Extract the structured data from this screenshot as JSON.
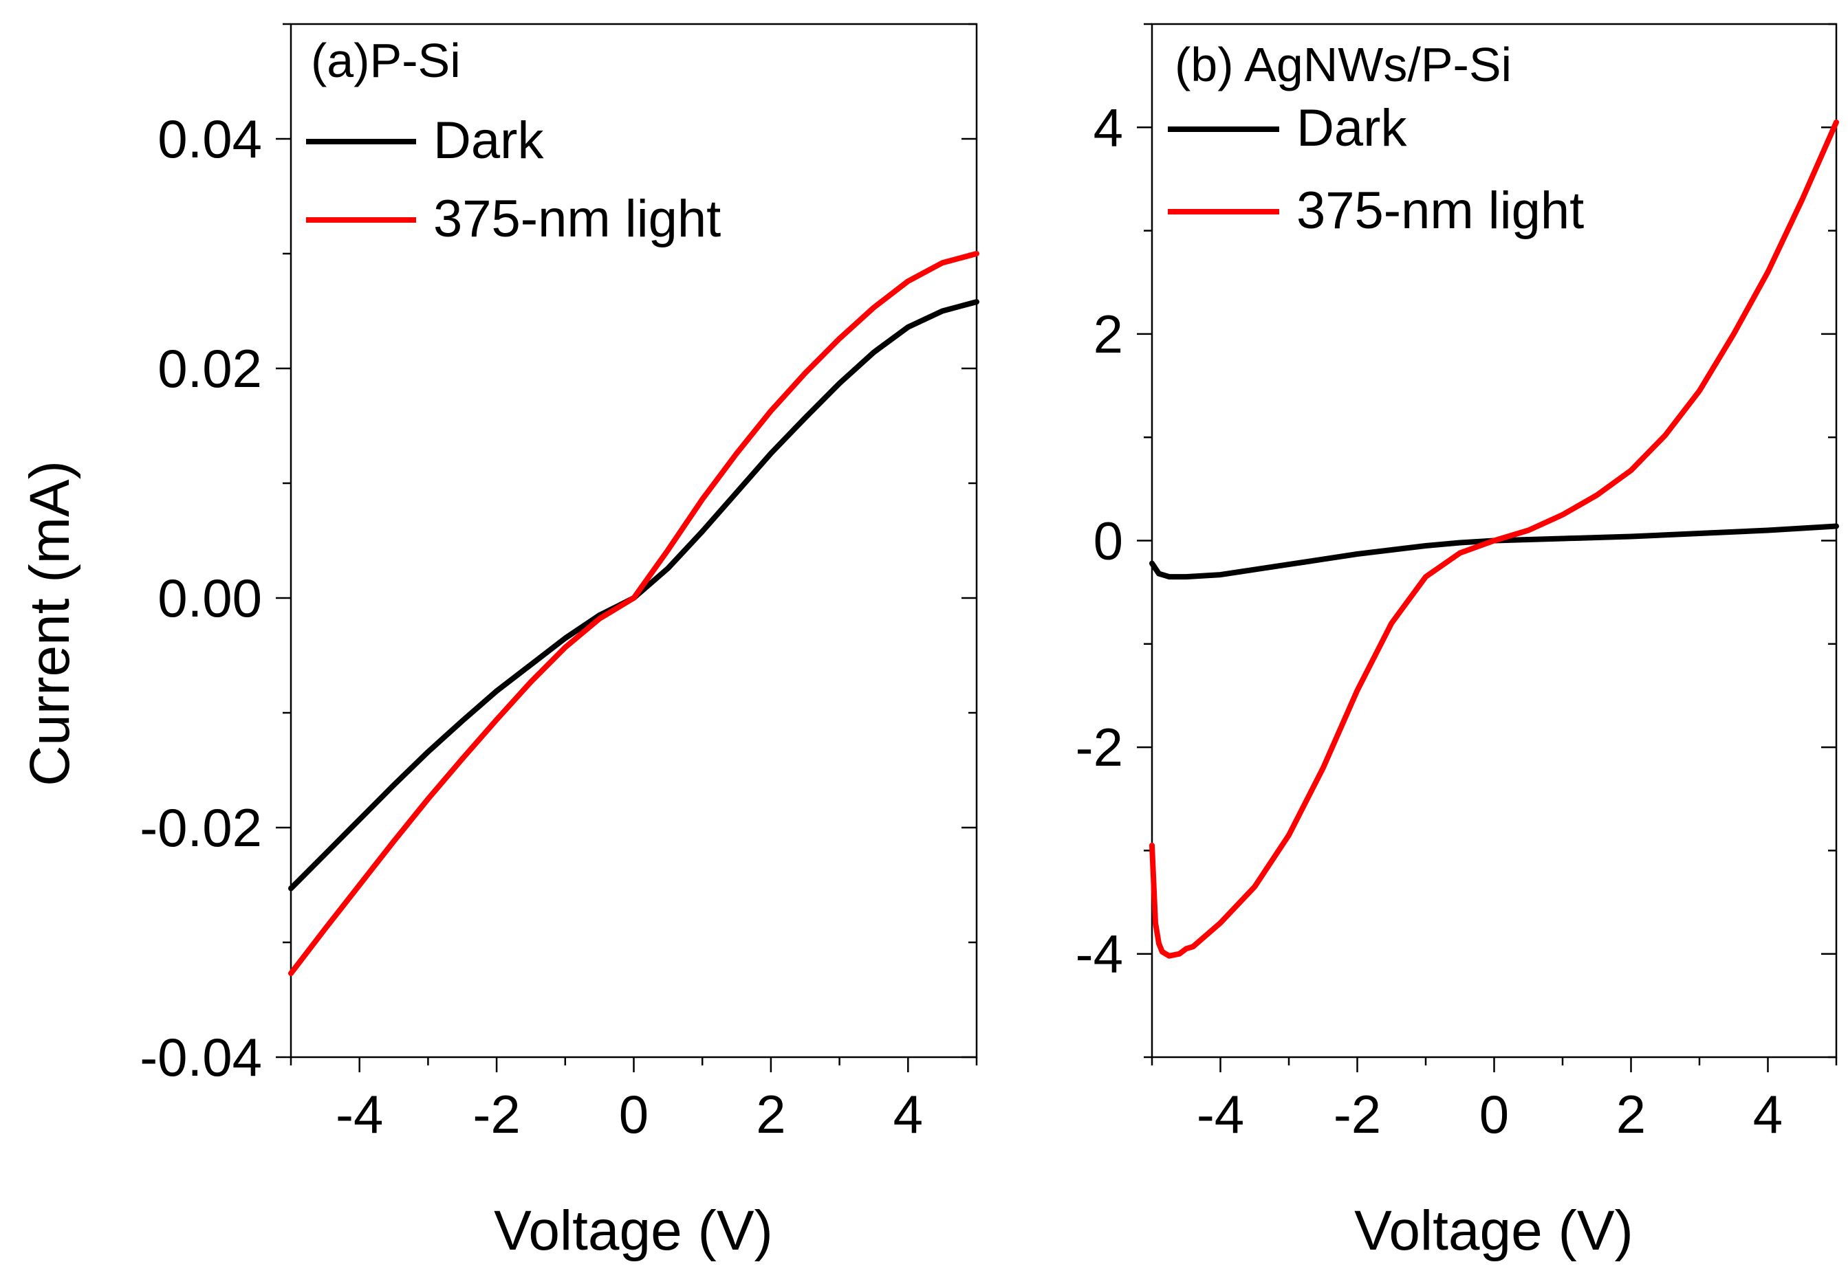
{
  "colors": {
    "dark": "#000000",
    "light": "#ff0000"
  },
  "chart_data": [
    {
      "type": "line",
      "title": "(a)P-Si",
      "xlabel": "Voltage (V)",
      "ylabel": "Current (mA)",
      "xlim": [
        -5,
        5
      ],
      "ylim": [
        -0.04,
        0.05
      ],
      "xticks": [
        -4,
        -2,
        0,
        2,
        4
      ],
      "xtick_labels": [
        "-4",
        "-2",
        "0",
        "2",
        "4"
      ],
      "yticks": [
        -0.04,
        -0.02,
        0.0,
        0.02,
        0.04
      ],
      "ytick_labels": [
        "-0.04",
        "-0.02",
        "0.00",
        "0.02",
        "0.04"
      ],
      "legend_position": "top-left",
      "series": [
        {
          "name": "Dark",
          "color": "#000000",
          "x": [
            -5,
            -4.5,
            -4,
            -3.5,
            -3,
            -2.5,
            -2,
            -1.5,
            -1,
            -0.5,
            0,
            0.5,
            1,
            1.5,
            2,
            2.5,
            3,
            3.5,
            4,
            4.5,
            5
          ],
          "y": [
            -0.0253,
            -0.0223,
            -0.0193,
            -0.0163,
            -0.0134,
            -0.0107,
            -0.0081,
            -0.0058,
            -0.0035,
            -0.0015,
            0.0,
            0.0026,
            0.0058,
            0.0092,
            0.0126,
            0.0157,
            0.0187,
            0.0214,
            0.0236,
            0.025,
            0.0258
          ]
        },
        {
          "name": "375-nm light",
          "color": "#ff0000",
          "x": [
            -5,
            -4.5,
            -4,
            -3.5,
            -3,
            -2.5,
            -2,
            -1.5,
            -1,
            -0.5,
            0,
            0.5,
            1,
            1.5,
            2,
            2.5,
            3,
            3.5,
            4,
            4.5,
            5
          ],
          "y": [
            -0.0327,
            -0.0288,
            -0.025,
            -0.0212,
            -0.0175,
            -0.014,
            -0.0106,
            -0.0073,
            -0.0043,
            -0.0018,
            0.0,
            0.0042,
            0.0086,
            0.0126,
            0.0163,
            0.0196,
            0.0226,
            0.0253,
            0.0276,
            0.0292,
            0.03
          ]
        }
      ]
    },
    {
      "type": "line",
      "title": "(b) AgNWs/P-Si",
      "xlabel": "Voltage (V)",
      "ylabel": "",
      "xlim": [
        -5,
        5
      ],
      "ylim": [
        -5,
        5
      ],
      "xticks": [
        -4,
        -2,
        0,
        2,
        4
      ],
      "xtick_labels": [
        "-4",
        "-2",
        "0",
        "2",
        "4"
      ],
      "yticks": [
        -4,
        -2,
        0,
        2,
        4
      ],
      "ytick_labels": [
        "-4",
        "-2",
        "0",
        "2",
        "4"
      ],
      "legend_position": "top-left",
      "series": [
        {
          "name": "Dark",
          "color": "#000000",
          "x": [
            -5,
            -4.9,
            -4.75,
            -4.5,
            -4,
            -3.5,
            -3,
            -2.5,
            -2,
            -1.5,
            -1,
            -0.5,
            0,
            0.5,
            1,
            2,
            3,
            4,
            5
          ],
          "y": [
            -0.22,
            -0.32,
            -0.35,
            -0.35,
            -0.33,
            -0.28,
            -0.23,
            -0.18,
            -0.13,
            -0.09,
            -0.05,
            -0.02,
            0.0,
            0.01,
            0.02,
            0.04,
            0.07,
            0.1,
            0.14
          ]
        },
        {
          "name": "375-nm light",
          "color": "#ff0000",
          "x": [
            -5,
            -4.95,
            -4.9,
            -4.85,
            -4.75,
            -4.6,
            -4.5,
            -4.4,
            -4,
            -3.5,
            -3,
            -2.5,
            -2,
            -1.5,
            -1,
            -0.5,
            0,
            0.5,
            1,
            1.5,
            2,
            2.5,
            3,
            3.5,
            4,
            4.5,
            5
          ],
          "y": [
            -2.95,
            -3.7,
            -3.9,
            -3.98,
            -4.02,
            -4.0,
            -3.95,
            -3.93,
            -3.7,
            -3.35,
            -2.85,
            -2.2,
            -1.45,
            -0.8,
            -0.35,
            -0.12,
            0.0,
            0.1,
            0.25,
            0.44,
            0.68,
            1.02,
            1.45,
            2.0,
            2.6,
            3.3,
            4.05
          ]
        }
      ]
    }
  ]
}
